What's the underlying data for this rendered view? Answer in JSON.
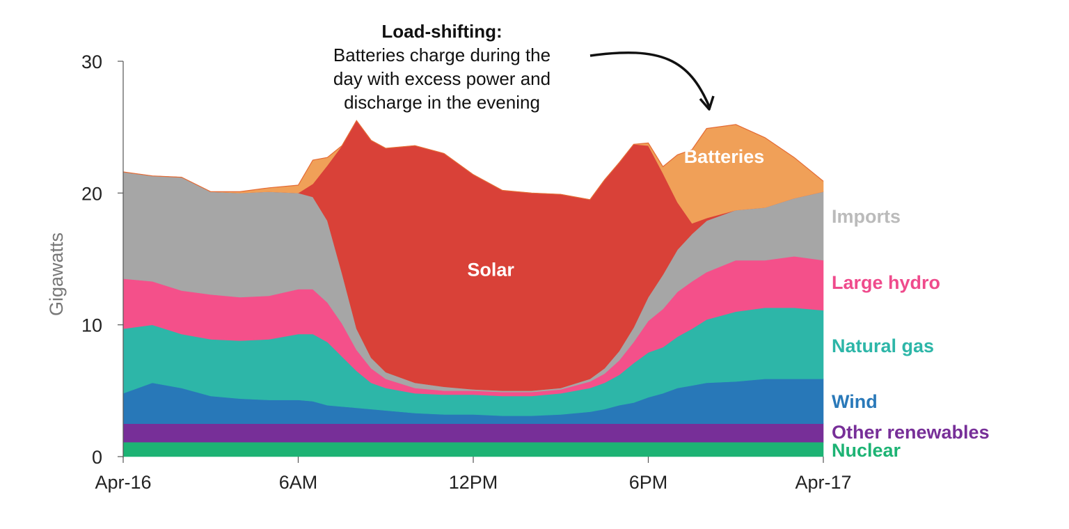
{
  "chart_data": {
    "type": "area",
    "stacked": true,
    "ylabel": "Gigawatts",
    "xlabel": "",
    "ylim": [
      0,
      30
    ],
    "yticks": [
      0,
      10,
      20,
      30
    ],
    "xticks": [
      {
        "hour": 0,
        "label": "Apr-16"
      },
      {
        "hour": 6,
        "label": "6AM"
      },
      {
        "hour": 12,
        "label": "12PM"
      },
      {
        "hour": 18,
        "label": "6PM"
      },
      {
        "hour": 24,
        "label": "Apr-17"
      }
    ],
    "x_hours": [
      0,
      1,
      2,
      3,
      4,
      5,
      6,
      6.5,
      7,
      7.5,
      8,
      8.5,
      9,
      10,
      11,
      12,
      13,
      14,
      15,
      16,
      16.5,
      17,
      17.5,
      18,
      18.5,
      19,
      19.5,
      20,
      21,
      22,
      23,
      24
    ],
    "series": [
      {
        "name": "Nuclear",
        "color": "#1db374",
        "values": [
          1.1,
          1.1,
          1.1,
          1.1,
          1.1,
          1.1,
          1.1,
          1.1,
          1.1,
          1.1,
          1.1,
          1.1,
          1.1,
          1.1,
          1.1,
          1.1,
          1.1,
          1.1,
          1.1,
          1.1,
          1.1,
          1.1,
          1.1,
          1.1,
          1.1,
          1.1,
          1.1,
          1.1,
          1.1,
          1.1,
          1.1,
          1.1
        ]
      },
      {
        "name": "Other renewables",
        "color": "#772f98",
        "values": [
          1.4,
          1.4,
          1.4,
          1.4,
          1.4,
          1.4,
          1.4,
          1.4,
          1.4,
          1.4,
          1.4,
          1.4,
          1.4,
          1.4,
          1.4,
          1.4,
          1.4,
          1.4,
          1.4,
          1.4,
          1.4,
          1.4,
          1.4,
          1.4,
          1.4,
          1.4,
          1.4,
          1.4,
          1.4,
          1.4,
          1.4,
          1.4
        ]
      },
      {
        "name": "Wind",
        "color": "#2878b8",
        "values": [
          2.3,
          3.1,
          2.7,
          2.1,
          1.9,
          1.8,
          1.8,
          1.7,
          1.4,
          1.3,
          1.2,
          1.1,
          1.0,
          0.8,
          0.7,
          0.7,
          0.6,
          0.6,
          0.7,
          0.9,
          1.1,
          1.4,
          1.6,
          2.0,
          2.3,
          2.7,
          2.9,
          3.1,
          3.2,
          3.4,
          3.4,
          3.4
        ]
      },
      {
        "name": "Natural gas",
        "color": "#2db6a8",
        "values": [
          4.9,
          4.4,
          4.1,
          4.3,
          4.4,
          4.6,
          5.0,
          5.1,
          4.8,
          3.8,
          2.8,
          2.0,
          1.7,
          1.5,
          1.5,
          1.5,
          1.5,
          1.5,
          1.6,
          1.8,
          2.0,
          2.3,
          3.0,
          3.4,
          3.5,
          3.9,
          4.3,
          4.8,
          5.3,
          5.4,
          5.4,
          5.2
        ]
      },
      {
        "name": "Large hydro",
        "color": "#f4508a",
        "values": [
          3.8,
          3.3,
          3.3,
          3.4,
          3.3,
          3.3,
          3.4,
          3.4,
          3.0,
          2.5,
          1.6,
          1.1,
          0.7,
          0.4,
          0.3,
          0.3,
          0.3,
          0.3,
          0.3,
          0.5,
          0.7,
          1.1,
          1.6,
          2.4,
          2.9,
          3.4,
          3.6,
          3.6,
          3.9,
          3.6,
          3.9,
          3.8
        ]
      },
      {
        "name": "Imports",
        "color": "#a6a6a6",
        "values": [
          8.1,
          8.0,
          8.6,
          7.8,
          7.9,
          7.9,
          7.3,
          7.0,
          6.2,
          3.8,
          1.6,
          0.8,
          0.5,
          0.4,
          0.3,
          0.1,
          0.1,
          0.1,
          0.1,
          0.2,
          0.4,
          0.7,
          1.1,
          1.8,
          2.6,
          3.2,
          3.6,
          3.9,
          3.8,
          4.0,
          4.4,
          5.2
        ]
      },
      {
        "name": "Solar",
        "color": "#d94138",
        "values": [
          0,
          0,
          0,
          0,
          0,
          0,
          0,
          1.0,
          4.2,
          9.7,
          15.8,
          16.5,
          17.0,
          18.0,
          17.7,
          16.3,
          15.2,
          15.0,
          14.7,
          13.6,
          14.3,
          14.3,
          13.9,
          11.5,
          7.7,
          3.6,
          0.8,
          0.2,
          0,
          0,
          0,
          0
        ]
      },
      {
        "name": "Batteries",
        "color": "#f0a058",
        "values": [
          0,
          0,
          0,
          0,
          0.1,
          0.3,
          0.6,
          1.8,
          0.6,
          0,
          0,
          0,
          0,
          0,
          0,
          0,
          0,
          0,
          0,
          0,
          0,
          0,
          0,
          0.2,
          0.5,
          3.6,
          5.6,
          6.8,
          6.5,
          5.3,
          3.1,
          0.8
        ]
      }
    ],
    "area_labels": [
      {
        "series": "Solar",
        "text": "Solar"
      },
      {
        "series": "Batteries",
        "text": "Batteries"
      }
    ],
    "legend": [
      {
        "text": "Imports",
        "color": "#bbbbbb"
      },
      {
        "text": "Large hydro",
        "color": "#ef4b8c"
      },
      {
        "text": "Natural gas",
        "color": "#2db6a8"
      },
      {
        "text": "Wind",
        "color": "#2a79b9"
      },
      {
        "text": "Other renewables",
        "color": "#772f98"
      },
      {
        "text": "Nuclear",
        "color": "#1db374"
      }
    ],
    "legend_placement": "right",
    "total_line_color": "#e46b35"
  },
  "annotation": {
    "title": "Load-shifting:",
    "lines": [
      "Batteries charge during the",
      "day with excess power and",
      "discharge in the evening"
    ]
  }
}
